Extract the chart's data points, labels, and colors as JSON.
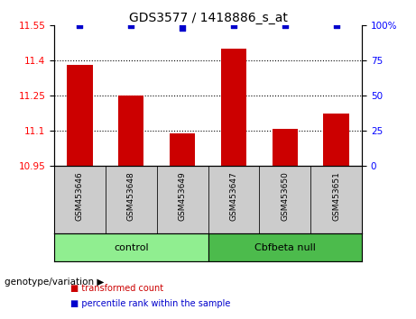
{
  "title": "GDS3577 / 1418886_s_at",
  "samples": [
    "GSM453646",
    "GSM453648",
    "GSM453649",
    "GSM453647",
    "GSM453650",
    "GSM453651"
  ],
  "bar_values": [
    11.38,
    11.25,
    11.09,
    11.45,
    11.11,
    11.175
  ],
  "percentile_values": [
    100,
    100,
    98,
    100,
    100,
    100
  ],
  "ylim": [
    10.95,
    11.55
  ],
  "yticks": [
    10.95,
    11.1,
    11.25,
    11.4,
    11.55
  ],
  "ytick_labels": [
    "10.95",
    "11.1",
    "11.25",
    "11.4",
    "11.55"
  ],
  "right_yticks": [
    0,
    25,
    50,
    75,
    100
  ],
  "right_ylim": [
    0,
    100
  ],
  "groups": [
    {
      "label": "control",
      "indices": [
        0,
        1,
        2
      ],
      "color": "#90EE90"
    },
    {
      "label": "Cbfbeta null",
      "indices": [
        3,
        4,
        5
      ],
      "color": "#4CBB4C"
    }
  ],
  "bar_color": "#CC0000",
  "dot_color": "#0000CC",
  "bg_color": "#CCCCCC",
  "group_label": "genotype/variation",
  "legend_items": [
    {
      "color": "#CC0000",
      "label": "transformed count"
    },
    {
      "color": "#0000CC",
      "label": "percentile rank within the sample"
    }
  ]
}
